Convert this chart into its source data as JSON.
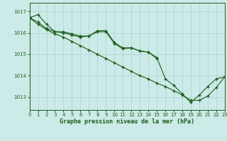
{
  "xlabel": "Graphe pression niveau de la mer (hPa)",
  "ylim": [
    1012.4,
    1017.4
  ],
  "xlim": [
    0,
    23
  ],
  "yticks": [
    1013,
    1014,
    1015,
    1016,
    1017
  ],
  "xticks": [
    0,
    1,
    2,
    3,
    4,
    5,
    6,
    7,
    8,
    9,
    10,
    11,
    12,
    13,
    14,
    15,
    16,
    17,
    18,
    19,
    20,
    21,
    22,
    23
  ],
  "bg_color": "#cceae7",
  "line_color": "#1a5c1a",
  "grid_color": "#aad4d0",
  "line1_x": [
    0,
    1,
    2,
    3,
    4,
    5,
    6,
    7,
    8,
    9,
    10,
    11,
    12,
    13,
    14,
    15,
    16,
    17,
    18,
    19,
    20,
    21,
    22,
    23
  ],
  "line1_y": [
    1016.7,
    1016.85,
    1016.4,
    1016.05,
    1016.05,
    1015.95,
    1015.85,
    1015.85,
    1016.1,
    1016.1,
    1015.55,
    1015.3,
    1015.3,
    1015.15,
    1015.1,
    1014.85,
    1013.85,
    1013.55,
    1013.15,
    1012.75,
    1013.1,
    1013.5,
    1013.85,
    1013.95
  ],
  "line2_x": [
    0,
    1,
    2,
    3,
    4,
    5,
    6,
    7,
    8,
    9,
    10,
    11,
    12,
    13,
    14,
    15
  ],
  "line2_y": [
    1016.7,
    1016.5,
    1016.2,
    1016.05,
    1016.0,
    1015.9,
    1015.8,
    1015.85,
    1016.05,
    1016.05,
    1015.5,
    1015.25,
    1015.3,
    1015.15,
    1015.1,
    1014.8
  ],
  "line3_x": [
    0,
    1,
    2,
    3,
    4,
    5,
    6,
    7,
    8,
    9,
    10,
    11,
    12,
    13,
    14,
    15,
    16,
    17,
    18,
    19,
    20,
    21,
    22,
    23
  ],
  "line3_y": [
    1016.7,
    1016.4,
    1016.15,
    1015.95,
    1015.8,
    1015.6,
    1015.4,
    1015.2,
    1015.0,
    1014.8,
    1014.6,
    1014.4,
    1014.2,
    1014.0,
    1013.85,
    1013.65,
    1013.5,
    1013.3,
    1013.1,
    1012.85,
    1012.85,
    1013.05,
    1013.45,
    1013.95
  ]
}
